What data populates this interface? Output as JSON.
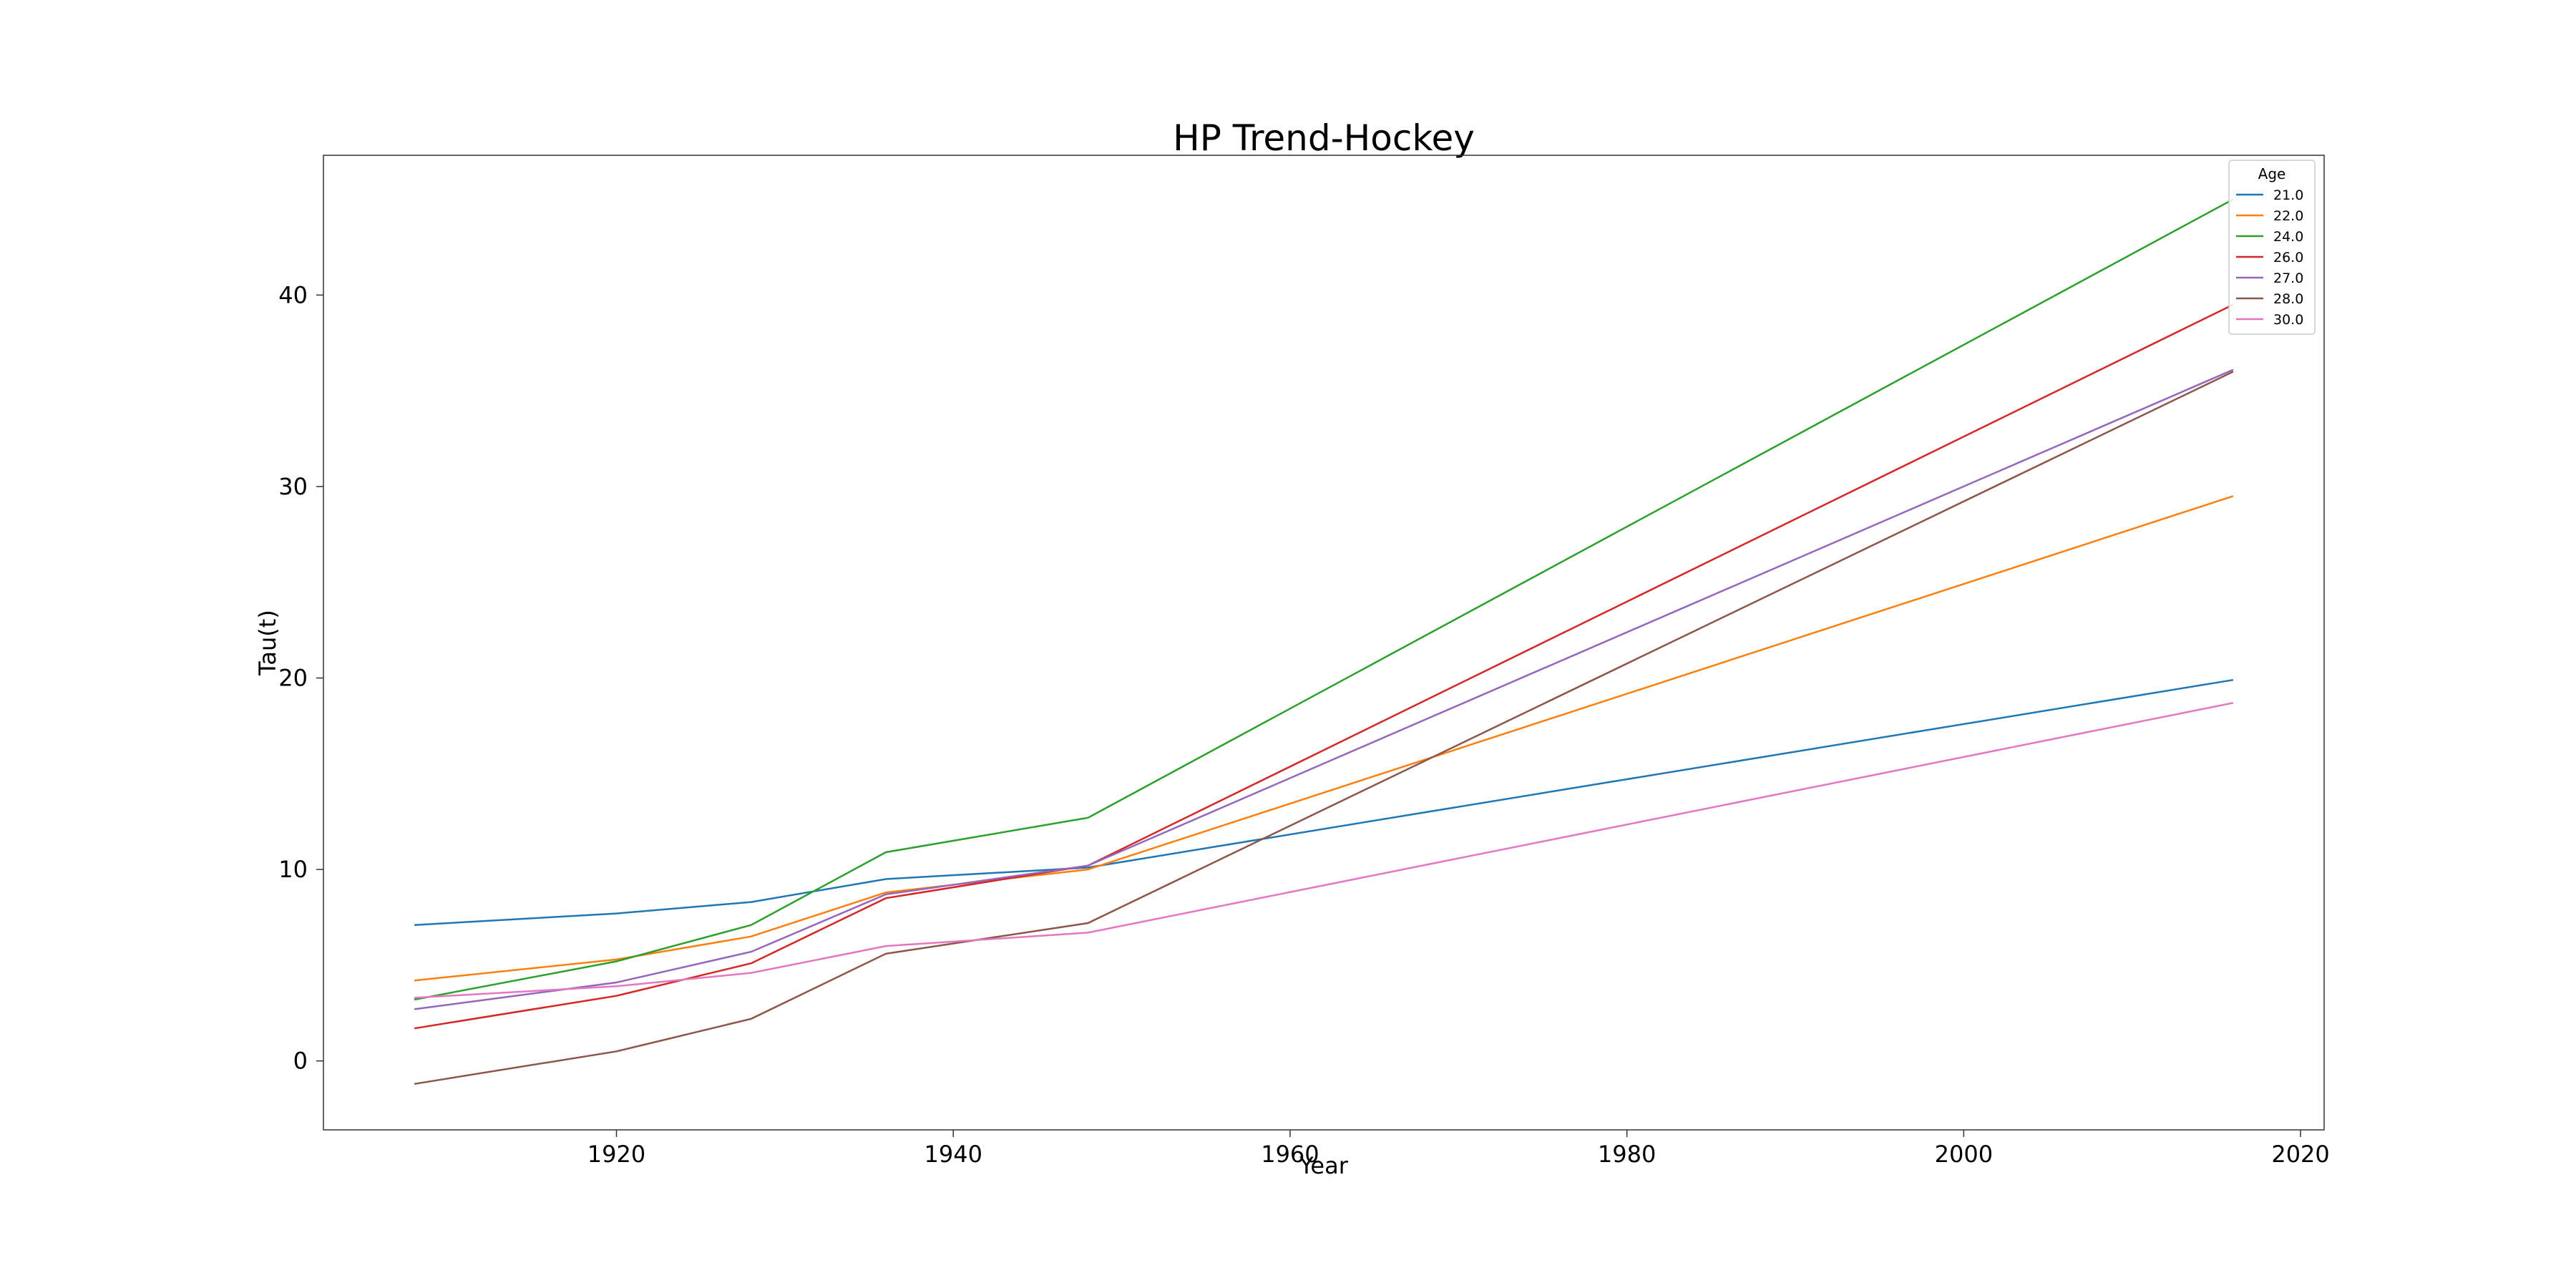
{
  "chart_data": {
    "type": "line",
    "title": "HP Trend-Hockey",
    "xlabel": "Year",
    "ylabel": "Tau(t)",
    "xlim": [
      1902.6,
      2021.4
    ],
    "ylim": [
      -3.6,
      47.3
    ],
    "xticks": [
      1920,
      1940,
      1960,
      1980,
      2000,
      2020
    ],
    "yticks": [
      0,
      10,
      20,
      30,
      40
    ],
    "grid": false,
    "legend": {
      "title": "Age",
      "placement": "top-right"
    },
    "x": [
      1908,
      1920,
      1928,
      1936,
      1948,
      2016
    ],
    "series": [
      {
        "name": "21.0",
        "color": "#1f77b4",
        "values": [
          7.1,
          7.7,
          8.3,
          9.5,
          10.1,
          19.9
        ]
      },
      {
        "name": "22.0",
        "color": "#ff7f0e",
        "values": [
          4.2,
          5.3,
          6.5,
          8.8,
          10.0,
          29.5
        ]
      },
      {
        "name": "24.0",
        "color": "#2ca02c",
        "values": [
          3.2,
          5.2,
          7.1,
          10.9,
          12.7,
          45.0
        ]
      },
      {
        "name": "26.0",
        "color": "#d62728",
        "values": [
          1.7,
          3.4,
          5.1,
          8.5,
          10.2,
          39.5
        ]
      },
      {
        "name": "27.0",
        "color": "#9467bd",
        "values": [
          2.7,
          4.1,
          5.7,
          8.7,
          10.2,
          36.1
        ]
      },
      {
        "name": "28.0",
        "color": "#8c564b",
        "values": [
          -1.2,
          0.5,
          2.2,
          5.6,
          7.2,
          36.0
        ]
      },
      {
        "name": "30.0",
        "color": "#e377c2",
        "values": [
          3.3,
          3.9,
          4.6,
          6.0,
          6.7,
          18.7
        ]
      }
    ]
  }
}
